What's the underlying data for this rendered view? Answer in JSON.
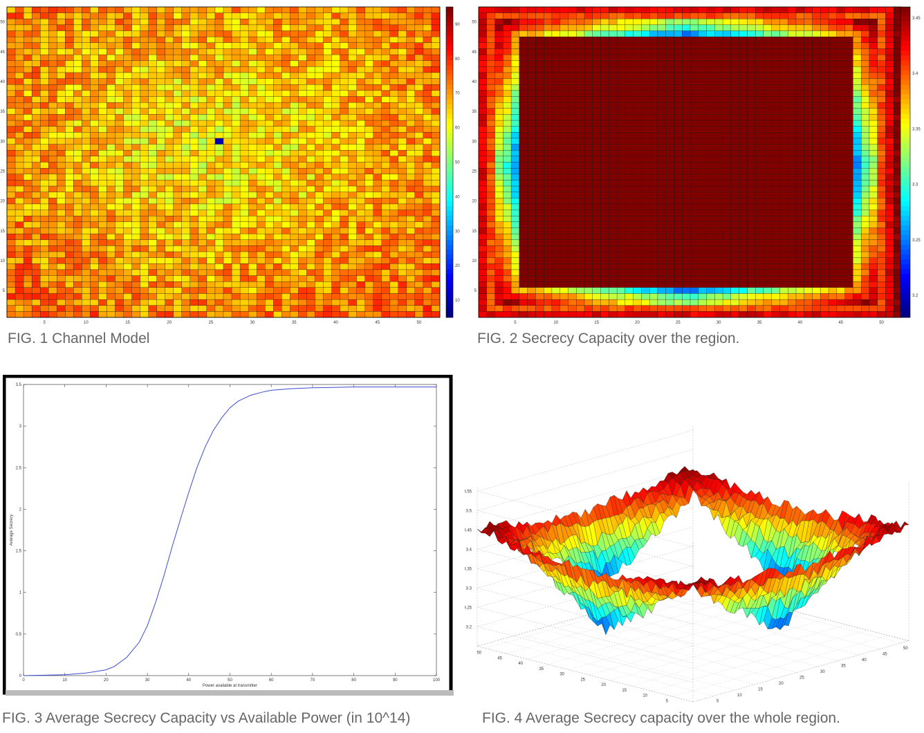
{
  "figures": {
    "fig1": {
      "caption": "FIG. 1 Channel Model"
    },
    "fig2": {
      "caption": "FIG. 2 Secrecy Capacity over the region."
    },
    "fig3": {
      "caption": "FIG. 3 Average Secrecy Capacity vs Available Power (in 10^14)"
    },
    "fig4": {
      "caption": "FIG. 4 Average Secrecy capacity over the whole region."
    }
  },
  "chart_data": [
    {
      "id": "fig1",
      "type": "heatmap",
      "title": "",
      "xlabel": "",
      "ylabel": "",
      "grid_size": [
        52,
        52
      ],
      "xticks": [
        5,
        10,
        15,
        20,
        25,
        30,
        35,
        40,
        45,
        50
      ],
      "yticks": [
        5,
        10,
        15,
        20,
        25,
        30,
        35,
        40,
        45,
        50
      ],
      "peak_cell": [
        26,
        26
      ],
      "colormap": "jet",
      "colorbar_ticks": [
        10,
        20,
        30,
        40,
        50,
        60,
        70,
        80,
        90
      ],
      "colorbar_range": [
        5,
        95
      ]
    },
    {
      "id": "fig2",
      "type": "heatmap",
      "title": "",
      "xlabel": "",
      "ylabel": "",
      "grid_size": [
        52,
        52
      ],
      "xticks": [
        5,
        10,
        15,
        20,
        25,
        30,
        35,
        40,
        45,
        50
      ],
      "yticks": [
        5,
        10,
        15,
        20,
        25,
        30,
        35,
        40,
        45,
        50
      ],
      "inner_plateau": {
        "x": [
          6,
          46
        ],
        "y": [
          6,
          47
        ],
        "value": 3.45
      },
      "colormap": "jet",
      "colorbar_ticks": [
        3.2,
        3.25,
        3.3,
        3.35,
        3.4,
        3.45
      ],
      "colorbar_range": [
        3.18,
        3.46
      ]
    },
    {
      "id": "fig3",
      "type": "line",
      "title": "",
      "xlabel": "Power available at transmitter",
      "ylabel": "Average Secrecy",
      "xlim": [
        0,
        100
      ],
      "ylim": [
        0,
        3.5
      ],
      "xticks": [
        0,
        10,
        20,
        30,
        40,
        50,
        60,
        70,
        80,
        90,
        100
      ],
      "yticks": [
        0,
        0.5,
        1,
        1.5,
        2,
        2.5,
        3,
        3.5
      ],
      "series": [
        {
          "x": [
            0,
            5,
            10,
            15,
            20,
            22,
            25,
            28,
            30,
            32,
            34,
            36,
            38,
            40,
            42,
            44,
            46,
            48,
            50,
            52,
            55,
            58,
            60,
            65,
            70,
            75,
            80,
            90,
            100
          ],
          "y": [
            0.0,
            0.005,
            0.01,
            0.03,
            0.07,
            0.11,
            0.22,
            0.4,
            0.6,
            0.88,
            1.2,
            1.55,
            1.88,
            2.2,
            2.5,
            2.75,
            2.95,
            3.1,
            3.22,
            3.3,
            3.37,
            3.41,
            3.43,
            3.45,
            3.46,
            3.465,
            3.47,
            3.47,
            3.47
          ],
          "color": "#3b4bd1"
        }
      ]
    },
    {
      "id": "fig4",
      "type": "heatmap",
      "title": "",
      "xlabel": "",
      "ylabel": "",
      "zticks": [
        3.2,
        3.25,
        3.3,
        3.35,
        3.4,
        3.45,
        3.5,
        3.55
      ],
      "xticks": [
        5,
        10,
        15,
        20,
        25,
        30,
        35,
        40,
        45,
        50
      ],
      "yticks": [
        5,
        10,
        15,
        20,
        25,
        30,
        35,
        40,
        45,
        50
      ],
      "colormap": "jet",
      "surface": "3d"
    }
  ]
}
